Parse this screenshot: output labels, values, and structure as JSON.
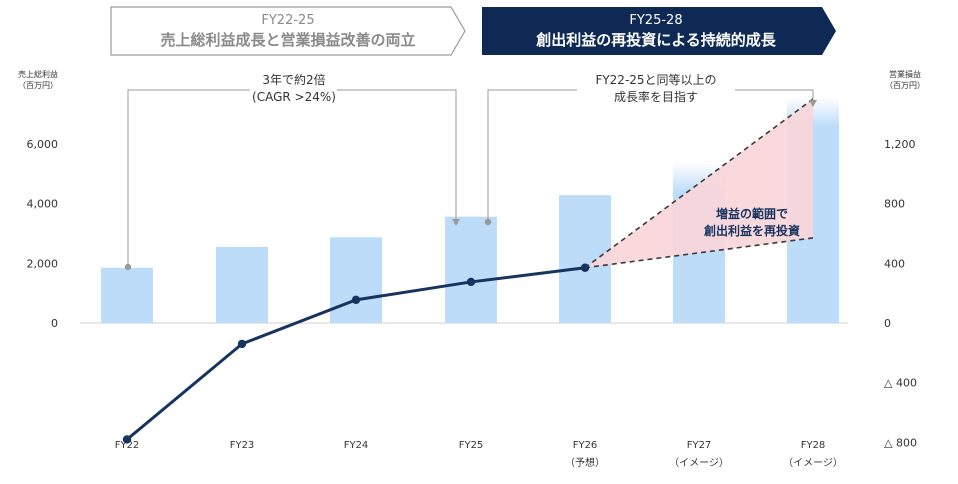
{
  "chart_data": {
    "type": "bar+line",
    "categories": [
      "FY22",
      "FY23",
      "FY24",
      "FY25",
      "FY26",
      "FY27",
      "FY28"
    ],
    "category_sublabels": [
      "",
      "",
      "",
      "",
      "（予想）",
      "（イメージ）",
      "（イメージ）"
    ],
    "series": [
      {
        "name": "売上総利益",
        "kind": "bar",
        "axis": "left",
        "values": [
          1850,
          2550,
          2870,
          3560,
          4280,
          5300,
          7500
        ],
        "estimated_from": 4
      },
      {
        "name": "営業損益",
        "kind": "line",
        "axis": "right",
        "values": [
          -780,
          -140,
          155,
          275,
          370,
          null,
          null
        ]
      }
    ],
    "projection": {
      "from_category": "FY26",
      "upper_value_fy28": 1500,
      "lower_value_fy28": 570,
      "label_line1": "増益の範囲で",
      "label_line2": "創出利益を再投資",
      "fill_color": "#f9d5d8"
    },
    "left_axis": {
      "title_line1": "売上総利益",
      "title_line2": "（百万円）",
      "ylim": [
        -1200,
        7200
      ],
      "ticks": [
        0,
        2000,
        4000,
        6000
      ],
      "tick_labels": [
        "0",
        "2,000",
        "4,000",
        "6,000"
      ]
    },
    "right_axis": {
      "title_line1": "営業損益",
      "title_line2": "（百万円）",
      "ylim": [
        -1200,
        1440
      ],
      "ticks": [
        -800,
        -400,
        0,
        400,
        800,
        1200
      ],
      "tick_labels": [
        "△ 800",
        "△ 400",
        "0",
        "400",
        "800",
        "1,200"
      ]
    },
    "phases": [
      {
        "years": "FY22-25",
        "title": "売上総利益成長と営業損益改善の両立",
        "style": "outline"
      },
      {
        "years": "FY25-28",
        "title": "創出利益の再投資による持続的成長",
        "style": "filled"
      }
    ],
    "callouts": [
      {
        "line1": "3年で約2倍",
        "line2": "(CAGR >24%)"
      },
      {
        "line1": "FY22-25と同等以上の",
        "line2": "成長率を目指す"
      }
    ]
  },
  "colors": {
    "bar": "#bcdcfa",
    "line": "#17335f",
    "navy": "#0e2a54",
    "grey": "#8a8a8a",
    "dash": "#3a3a3a"
  }
}
